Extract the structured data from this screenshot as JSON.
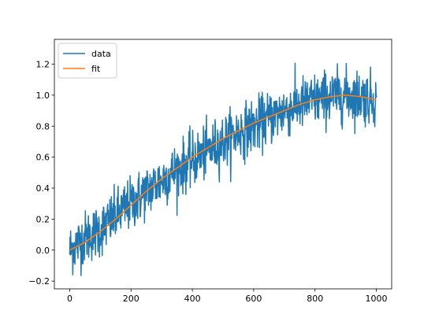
{
  "chart_data": {
    "type": "line",
    "title": "",
    "xlabel": "",
    "ylabel": "",
    "xlim": [
      -50,
      1050
    ],
    "ylim": [
      -0.25,
      1.36
    ],
    "x_ticks": [
      0,
      200,
      400,
      600,
      800,
      1000
    ],
    "x_tick_labels": [
      "0",
      "200",
      "400",
      "600",
      "800",
      "1000"
    ],
    "y_ticks": [
      -0.2,
      0.0,
      0.2,
      0.4,
      0.6,
      0.8,
      1.0,
      1.2
    ],
    "y_tick_labels": [
      "−0.2",
      "0.0",
      "0.2",
      "0.4",
      "0.6",
      "0.8",
      "1.0",
      "1.2"
    ],
    "grid": false,
    "legend_position": "upper-left",
    "x": [
      0,
      1000
    ],
    "series": [
      {
        "name": "data",
        "color": "#1f77b4",
        "x_range": [
          0,
          1000
        ],
        "description_of_values": "noisy signal around the fit curve, noise amplitude about ±0.15",
        "values_approx_every_50": [
          0.0,
          0.08,
          0.13,
          0.22,
          0.3,
          0.38,
          0.45,
          0.52,
          0.58,
          0.64,
          0.7,
          0.76,
          0.8,
          0.85,
          0.9,
          0.94,
          0.97,
          0.99,
          1.0,
          0.99,
          0.97
        ]
      },
      {
        "name": "fit",
        "color": "#ff7f0e",
        "x_range": [
          0,
          1000
        ],
        "values_approx_every_50": [
          0.0,
          0.05,
          0.12,
          0.2,
          0.29,
          0.38,
          0.46,
          0.53,
          0.6,
          0.66,
          0.72,
          0.77,
          0.82,
          0.86,
          0.9,
          0.94,
          0.97,
          0.99,
          1.0,
          0.99,
          0.97
        ]
      }
    ]
  }
}
